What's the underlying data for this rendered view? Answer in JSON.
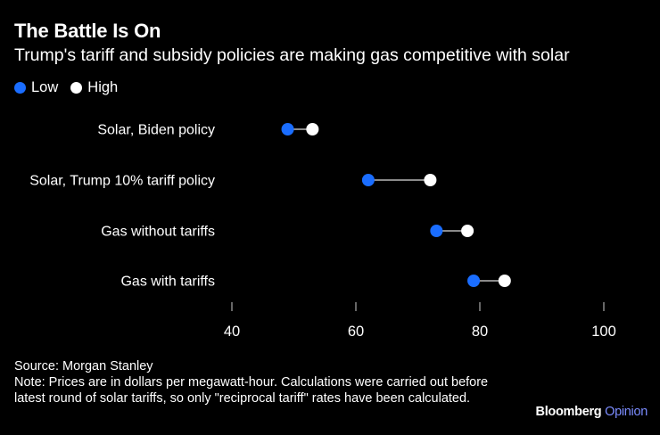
{
  "header": {
    "title": "The Battle Is On",
    "subtitle": "Trump's tariff and subsidy policies are making gas competitive with solar"
  },
  "legend": [
    {
      "label": "Low",
      "color": "#1a6dff"
    },
    {
      "label": "High",
      "color": "#ffffff"
    }
  ],
  "chart_data": {
    "type": "dumbbell",
    "title": "The Battle Is On",
    "subtitle": "Trump's tariff and subsidy policies are making gas competitive with solar",
    "categories": [
      "Solar, Biden policy",
      "Solar, Trump 10% tariff policy",
      "Gas without tariffs",
      "Gas with tariffs"
    ],
    "series": [
      {
        "name": "Low",
        "color": "#1a6dff",
        "values": [
          49,
          62,
          73,
          79
        ]
      },
      {
        "name": "High",
        "color": "#ffffff",
        "values": [
          53,
          72,
          78,
          84
        ]
      }
    ],
    "xticks": [
      40,
      60,
      80,
      100
    ],
    "xlim": [
      40,
      100
    ],
    "grid": false,
    "legend_position": "top-left"
  },
  "footer": {
    "source": "Source: Morgan Stanley",
    "note": "Note: Prices are in dollars per megawatt-hour. Calculations were carried out before latest round of solar tariffs, so only \"reciprocal tariff\" rates have been calculated.",
    "brand_main": "Bloomberg",
    "brand_accent": "Opinion"
  }
}
